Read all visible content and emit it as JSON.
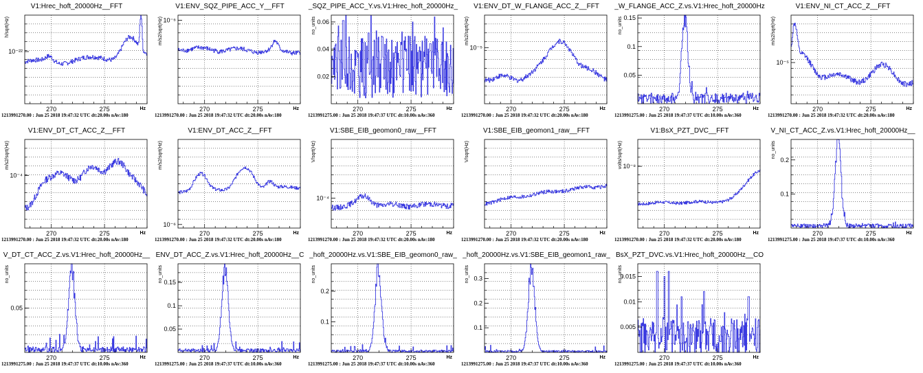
{
  "chart_data": [
    {
      "type": "line",
      "title": "V1:Hrec_hoft_20000Hz__FFT",
      "ylabel": "h/sqrt(Hz)",
      "xlabel": "Hz",
      "xlim": [
        267.5,
        279
      ],
      "ylim": [
        1e-23,
        5e-22
      ],
      "log_y": true,
      "x_ticks": [
        270,
        275
      ],
      "y_ticks": [
        {
          "value": 1e-22,
          "label": "10⁻²²"
        }
      ],
      "footer": "1213991270.00 : Jun 25 2018 19:47:32 UTC dt:20.00s nAv:180",
      "profile": {
        "kind": "fft",
        "base": 6e-23,
        "noise": 0.05,
        "ripple": [
          0.12,
          0.6
        ],
        "peaks": [
          [
            269.8,
            1.3,
            0.35
          ],
          [
            277.3,
            2.5,
            0.6
          ],
          [
            278.4,
            4.5,
            0.08
          ]
        ],
        "trend": [
          0,
          0.35
        ]
      },
      "series": [
        {
          "name": ""
        }
      ]
    },
    {
      "type": "line",
      "title": "V1:ENV_SQZ_PIPE_ACC_Y__FFT",
      "ylabel": "m/s2/sqrt(Hz)",
      "xlabel": "Hz",
      "xlim": [
        267.5,
        279
      ],
      "ylim": [
        5e-08,
        1.2e-06
      ],
      "log_y": true,
      "x_ticks": [
        270,
        275
      ],
      "y_ticks": [
        {
          "value": 1e-06,
          "label": "10⁻⁶"
        }
      ],
      "footer": "1213991270.00 : Jun 25 2018 19:47:32 UTC dt:20.00s nAv:180",
      "profile": {
        "kind": "fft",
        "base": 3.6e-07,
        "noise": 0.04,
        "ripple": [
          0.06,
          0.9
        ],
        "peaks": [
          [
            276.6,
            1.35,
            0.25
          ]
        ],
        "trend": [
          0,
          -0.1
        ]
      },
      "series": [
        {
          "name": ""
        }
      ]
    },
    {
      "type": "line",
      "title": "_SQZ_PIPE_ACC_Y.vs.V1:Hrec_hoft_20000Hz_",
      "ylabel": "no_units",
      "xlabel": "Hz",
      "xlim": [
        267.5,
        279
      ],
      "ylim": [
        0,
        0.065
      ],
      "log_y": false,
      "x_ticks": [
        270,
        275
      ],
      "y_ticks": [
        {
          "value": 0.02,
          "label": "0.02"
        },
        {
          "value": 0.04,
          "label": "0.04"
        },
        {
          "value": 0.06,
          "label": "0.06"
        }
      ],
      "footer": "1213991275.00 : Jun 25 2018 19:47:37 UTC dt:10.00s nAv:360",
      "profile": {
        "kind": "coh_noise",
        "base": 0.027,
        "spread": 0.035,
        "spikes": [
          [
            268.6,
            0.061
          ],
          [
            271.0,
            0.052
          ],
          [
            272.3,
            0.049
          ],
          [
            276.8,
            0.044
          ]
        ]
      },
      "series": [
        {
          "name": ""
        }
      ]
    },
    {
      "type": "line",
      "title": "V1:ENV_DT_W_FLANGE_ACC_Z__FFT",
      "ylabel": "m/s2/sqrt(Hz)",
      "xlabel": "Hz",
      "xlim": [
        267.5,
        279
      ],
      "ylim": [
        1.5e-06,
        3e-05
      ],
      "log_y": true,
      "x_ticks": [
        270,
        275
      ],
      "y_ticks": [
        {
          "value": 1e-05,
          "label": "10⁻⁵"
        }
      ],
      "footer": "1213991270.00 : Jun 25 2018 19:47:32 UTC dt:20.00s nAv:180",
      "profile": {
        "kind": "fft",
        "base": 3.6e-06,
        "noise": 0.04,
        "ripple": [
          0.08,
          1.1
        ],
        "peaks": [
          [
            274.3,
            3.2,
            1.0
          ],
          [
            276.5,
            1.4,
            0.9
          ]
        ],
        "trend": [
          0,
          0
        ]
      },
      "series": [
        {
          "name": ""
        }
      ]
    },
    {
      "type": "line",
      "title": "_W_FLANGE_ACC_Z.vs.V1:Hrec_hoft_20000Hz",
      "ylabel": "no_units",
      "xlabel": "Hz",
      "xlim": [
        267.5,
        279
      ],
      "ylim": [
        0,
        0.155
      ],
      "log_y": false,
      "x_ticks": [
        270,
        275
      ],
      "y_ticks": [
        {
          "value": 0.05,
          "label": "0.05"
        },
        {
          "value": 0.1,
          "label": "0.1"
        },
        {
          "value": 0.15,
          "label": "0.15"
        }
      ],
      "footer": "1213991275.00 : Jun 25 2018 19:47:37 UTC dt:10.00s nAv:360",
      "profile": {
        "kind": "coh_peak",
        "center": 271.9,
        "height": 0.142,
        "width": 0.28,
        "floor": 0.012,
        "spread": 0.012
      },
      "series": [
        {
          "name": ""
        }
      ]
    },
    {
      "type": "line",
      "title": "V1:ENV_NI_CT_ACC_Z__FFT",
      "ylabel": "m/s2/sqrt(Hz)",
      "xlabel": "Hz",
      "xlim": [
        267.5,
        279
      ],
      "ylim": [
        3e-06,
        4e-05
      ],
      "log_y": true,
      "x_ticks": [
        270,
        275
      ],
      "y_ticks": [
        {
          "value": 1e-05,
          "label": "10⁻⁵"
        }
      ],
      "footer": "1213991270.00 : Jun 25 2018 19:47:32 UTC dt:20.00s nAv:180",
      "profile": {
        "kind": "fft",
        "base": 6e-06,
        "noise": 0.04,
        "ripple": [
          0.1,
          0.8
        ],
        "peaks": [
          [
            267.8,
            2.8,
            0.2
          ],
          [
            268.6,
            1.7,
            0.8
          ],
          [
            276.3,
            1.5,
            0.9
          ]
        ],
        "trend": [
          0.2,
          -0.1
        ]
      },
      "series": [
        {
          "name": ""
        }
      ]
    },
    {
      "type": "line",
      "title": "V1:ENV_DT_CT_ACC_Z__FFT",
      "ylabel": "m/s2/sqrt(Hz)",
      "xlabel": "Hz",
      "xlim": [
        267.5,
        279
      ],
      "ylim": [
        2e-05,
        0.0003
      ],
      "log_y": true,
      "x_ticks": [
        270,
        275
      ],
      "y_ticks": [
        {
          "value": 0.0001,
          "label": "10⁻⁴"
        }
      ],
      "footer": "1213991270.00 : Jun 25 2018 19:47:32 UTC dt:20.00s nAv:180",
      "profile": {
        "kind": "fft",
        "base": 4e-05,
        "noise": 0.05,
        "ripple": [
          0.1,
          1.3
        ],
        "peaks": [
          [
            270.0,
            2.1,
            0.8
          ],
          [
            274.4,
            3.1,
            2.2
          ],
          [
            277.0,
            1.6,
            0.9
          ]
        ],
        "trend": [
          0,
          0
        ]
      },
      "series": [
        {
          "name": ""
        }
      ]
    },
    {
      "type": "line",
      "title": "V1:ENV_DT_ACC_Z__FFT",
      "ylabel": "m/s2/sqrt(Hz)",
      "xlabel": "Hz",
      "xlim": [
        267.5,
        279
      ],
      "ylim": [
        8e-07,
        0.0002
      ],
      "log_y": true,
      "x_ticks": [
        270,
        275
      ],
      "y_ticks": [
        {
          "value": 1e-06,
          "label": "10⁻⁶"
        }
      ],
      "footer": "1213991270.00 : Jun 25 2018 19:47:32 UTC dt:20.00s nAv:180",
      "profile": {
        "kind": "fft",
        "base": 7e-06,
        "noise": 0.05,
        "ripple": [
          0.06,
          1.0
        ],
        "peaks": [
          [
            269.6,
            3.3,
            0.5
          ],
          [
            273.7,
            3.8,
            0.65
          ],
          [
            276.1,
            1.6,
            0.3
          ]
        ],
        "trend": [
          0,
          0.5
        ]
      },
      "series": [
        {
          "name": ""
        }
      ]
    },
    {
      "type": "line",
      "title": "V1:SBE_EIB_geomon0_raw__FFT",
      "ylabel": "V/sqrt(Hz)",
      "xlabel": "Hz",
      "xlim": [
        267.5,
        279
      ],
      "ylim": [
        4e-05,
        0.0006
      ],
      "log_y": true,
      "x_ticks": [
        270,
        275
      ],
      "y_ticks": [
        {
          "value": 0.0001,
          "label": "10⁻⁴"
        }
      ],
      "footer": "1213991270.00 : Jun 25 2018 19:47:32 UTC dt:20.00s nAv:180",
      "profile": {
        "kind": "fft",
        "base": 7.8e-05,
        "noise": 0.04,
        "ripple": [
          0.04,
          0.9
        ],
        "peaks": [
          [
            270.6,
            1.35,
            0.6
          ]
        ],
        "trend": [
          0,
          0.05
        ]
      },
      "series": [
        {
          "name": ""
        }
      ]
    },
    {
      "type": "line",
      "title": "V1:SBE_EIB_geomon1_raw__FFT",
      "ylabel": "V/sqrt(Hz)",
      "xlabel": "Hz",
      "xlim": [
        267.5,
        279
      ],
      "ylim": [
        1e-05,
        0.0005
      ],
      "log_y": true,
      "x_ticks": [
        270,
        275
      ],
      "y_ticks": [],
      "footer": "1213991270.00 : Jun 25 2018 19:47:32 UTC dt:20.00s nAv:180",
      "profile": {
        "kind": "fft",
        "base": 3e-05,
        "noise": 0.04,
        "ripple": [
          0.04,
          0.9
        ],
        "peaks": [],
        "trend": [
          0,
          1.2
        ]
      },
      "series": [
        {
          "name": ""
        }
      ]
    },
    {
      "type": "line",
      "title": "V1:BsX_PZT_DVC__FFT",
      "ylabel": "volts/sqrt(Hz)",
      "xlabel": "Hz",
      "xlim": [
        267.5,
        279
      ],
      "ylim": [
        8e-10,
        3e-08
      ],
      "log_y": true,
      "x_ticks": [
        270,
        275
      ],
      "y_ticks": [
        {
          "value": 1e-08,
          "label": "10⁻⁸"
        }
      ],
      "footer": "1213991270.00 : Jun 25 2018 19:47:32 UTC dt:20.00s nAv:180",
      "profile": {
        "kind": "fft",
        "base": 2.2e-09,
        "noise": 0.03,
        "ripple": [
          0.03,
          0.9
        ],
        "peaks": [
          [
            279.2,
            3.6,
            1.2
          ]
        ],
        "trend": [
          0,
          0.1
        ]
      },
      "series": [
        {
          "name": ""
        }
      ]
    },
    {
      "type": "line",
      "title": "V_NI_CT_ACC_Z.vs.V1:Hrec_hoft_20000Hz__",
      "ylabel": "no_units",
      "xlabel": "Hz",
      "xlim": [
        267.5,
        279
      ],
      "ylim": [
        0,
        0.26
      ],
      "log_y": false,
      "x_ticks": [
        270,
        275
      ],
      "y_ticks": [
        {
          "value": 0.1,
          "label": "0.1"
        },
        {
          "value": 0.2,
          "label": "0.2"
        }
      ],
      "footer": "1213991275.00 : Jun 25 2018 19:47:37 UTC dt:10.00s nAv:360",
      "profile": {
        "kind": "coh_peak",
        "center": 271.9,
        "height": 0.245,
        "width": 0.28,
        "floor": 0.008,
        "spread": 0.012
      },
      "series": [
        {
          "name": ""
        }
      ]
    },
    {
      "type": "line",
      "title": "V_DT_CT_ACC_Z.vs.V1:Hrec_hoft_20000Hz__",
      "ylabel": "no_units",
      "xlabel": "Hz",
      "xlim": [
        267.5,
        279
      ],
      "ylim": [
        0,
        0.1
      ],
      "log_y": false,
      "x_ticks": [
        270,
        275
      ],
      "y_ticks": [
        {
          "value": 0.05,
          "label": "0.05"
        }
      ],
      "footer": "1213991275.00 : Jun 25 2018 19:47:37 UTC dt:10.00s nAv:360",
      "profile": {
        "kind": "coh_peak",
        "center": 271.9,
        "height": 0.09,
        "width": 0.3,
        "floor": 0.004,
        "spread": 0.01
      },
      "series": [
        {
          "name": ""
        }
      ]
    },
    {
      "type": "line",
      "title": "ENV_DT_ACC_Z.vs.V1:Hrec_hoft_20000Hz__C",
      "ylabel": "no_units",
      "xlabel": "Hz",
      "xlim": [
        267.5,
        279
      ],
      "ylim": [
        0,
        0.19
      ],
      "log_y": false,
      "x_ticks": [
        270,
        275
      ],
      "y_ticks": [
        {
          "value": 0.05,
          "label": "0.05"
        },
        {
          "value": 0.1,
          "label": "0.1"
        },
        {
          "value": 0.15,
          "label": "0.15"
        }
      ],
      "footer": "1213991275.00 : Jun 25 2018 19:47:37 UTC dt:10.00s nAv:360",
      "profile": {
        "kind": "coh_peak",
        "center": 271.9,
        "height": 0.175,
        "width": 0.3,
        "floor": 0.005,
        "spread": 0.012
      },
      "series": [
        {
          "name": ""
        }
      ]
    },
    {
      "type": "line",
      "title": "_hoft_20000Hz.vs.V1:SBE_EIB_geomon0_raw_",
      "ylabel": "no_units",
      "xlabel": "Hz",
      "xlim": [
        267.5,
        279
      ],
      "ylim": [
        0,
        0.29
      ],
      "log_y": false,
      "x_ticks": [
        270,
        275
      ],
      "y_ticks": [
        {
          "value": 0.1,
          "label": "0.1"
        },
        {
          "value": 0.2,
          "label": "0.2"
        }
      ],
      "footer": "1213991275.00 : Jun 25 2018 19:47:37 UTC dt:10.00s nAv:360",
      "profile": {
        "kind": "coh_peak",
        "center": 271.9,
        "height": 0.27,
        "width": 0.3,
        "floor": 0.005,
        "spread": 0.012
      },
      "series": [
        {
          "name": ""
        }
      ]
    },
    {
      "type": "line",
      "title": "_hoft_20000Hz.vs.V1:SBE_EIB_geomon1_raw_",
      "ylabel": "no_units",
      "xlabel": "Hz",
      "xlim": [
        267.5,
        279
      ],
      "ylim": [
        0,
        0.36
      ],
      "log_y": false,
      "x_ticks": [
        270,
        275
      ],
      "y_ticks": [
        {
          "value": 0.1,
          "label": "0.1"
        },
        {
          "value": 0.2,
          "label": "0.2"
        },
        {
          "value": 0.3,
          "label": "0.3"
        }
      ],
      "footer": "1213991275.00 : Jun 25 2018 19:47:37 UTC dt:10.00s nAv:360",
      "profile": {
        "kind": "coh_peak",
        "center": 271.9,
        "height": 0.34,
        "width": 0.3,
        "floor": 0.005,
        "spread": 0.014
      },
      "series": [
        {
          "name": ""
        }
      ]
    },
    {
      "type": "line",
      "title": "BsX_PZT_DVC.vs.V1:Hrec_hoft_20000Hz__CO",
      "ylabel": "no_units",
      "xlabel": "Hz",
      "xlim": [
        267.5,
        279
      ],
      "ylim": [
        0,
        0.0175
      ],
      "log_y": false,
      "x_ticks": [
        270,
        275
      ],
      "y_ticks": [
        {
          "value": 0.005,
          "label": "0.005"
        },
        {
          "value": 0.01,
          "label": "0.01"
        },
        {
          "value": 0.015,
          "label": "0.015"
        }
      ],
      "footer": "1213991275.00 : Jun 25 2018 19:47:37 UTC dt:10.00s nAv:360",
      "profile": {
        "kind": "coh_noise",
        "base": 0.003,
        "spread": 0.006,
        "spikes": [
          [
            269.3,
            0.016
          ],
          [
            270.0,
            0.015
          ],
          [
            270.4,
            0.016
          ],
          [
            271.6,
            0.011
          ],
          [
            273.7,
            0.012
          ],
          [
            277.9,
            0.011
          ]
        ]
      },
      "series": [
        {
          "name": ""
        }
      ]
    }
  ]
}
